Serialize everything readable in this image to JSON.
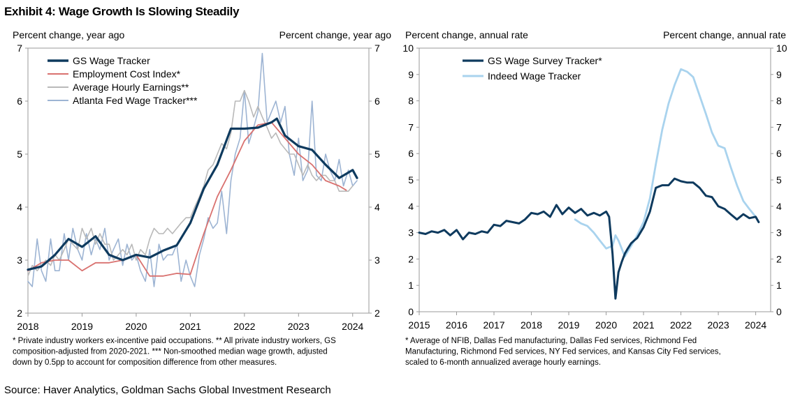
{
  "exhibit_title": "Exhibit 4: Wage Growth Is Slowing Steadily",
  "source": "Source: Haver Analytics, Goldman Sachs Global Investment Research",
  "chart_data": [
    {
      "type": "line",
      "left_axis_label": "Percent change, year ago",
      "right_axis_label": "Percent change, year ago",
      "xlim": [
        2018,
        2024.3
      ],
      "ylim": [
        2,
        7
      ],
      "x_ticks": [
        "2018",
        "2019",
        "2020",
        "2021",
        "2022",
        "2023",
        "2024"
      ],
      "y_ticks": [
        "2",
        "3",
        "4",
        "5",
        "6",
        "7"
      ],
      "legend_position": "top-left",
      "footnote_lines": [
        "* Private industry workers ex-incentive paid occupations. ** All private industry workers, GS",
        "composition-adjusted from 2020-2021. *** Non-smoothed median wage growth, adjusted",
        "down by 0.5pp to account for composition difference from other measures."
      ],
      "series": [
        {
          "name": "GS Wage Tracker",
          "color": "#0e3a5e",
          "x": [
            2018.0,
            2018.25,
            2018.5,
            2018.75,
            2019.0,
            2019.25,
            2019.5,
            2019.75,
            2020.0,
            2020.25,
            2020.5,
            2020.75,
            2021.0,
            2021.25,
            2021.5,
            2021.75,
            2022.0,
            2022.25,
            2022.5,
            2022.6,
            2022.75,
            2023.0,
            2023.25,
            2023.5,
            2023.75,
            2024.0,
            2024.08
          ],
          "y": [
            2.82,
            2.88,
            3.1,
            3.4,
            3.25,
            3.45,
            3.1,
            3.0,
            3.1,
            3.05,
            3.18,
            3.28,
            3.7,
            4.35,
            4.8,
            5.48,
            5.48,
            5.5,
            5.6,
            5.67,
            5.35,
            5.15,
            5.08,
            4.8,
            4.55,
            4.7,
            4.55
          ]
        },
        {
          "name": "Employment Cost Index*",
          "color": "#d9716f",
          "x": [
            2018.0,
            2018.25,
            2018.5,
            2018.75,
            2019.0,
            2019.25,
            2019.5,
            2019.75,
            2020.0,
            2020.25,
            2020.5,
            2020.75,
            2021.0,
            2021.25,
            2021.5,
            2021.75,
            2022.0,
            2022.25,
            2022.5,
            2022.75,
            2023.0,
            2023.25,
            2023.5,
            2023.75,
            2023.88
          ],
          "y": [
            2.8,
            2.95,
            3.0,
            3.0,
            2.8,
            2.95,
            2.95,
            3.0,
            3.1,
            2.7,
            2.7,
            2.75,
            2.73,
            3.5,
            4.2,
            4.7,
            5.25,
            5.55,
            5.6,
            5.3,
            5.0,
            4.8,
            4.5,
            4.4,
            4.32
          ]
        },
        {
          "name": "Average Hourly Earnings**",
          "color": "#b9b9b9",
          "x": [
            2018.0,
            2018.08,
            2018.17,
            2018.25,
            2018.33,
            2018.42,
            2018.5,
            2018.58,
            2018.67,
            2018.75,
            2018.83,
            2018.92,
            2019.0,
            2019.08,
            2019.17,
            2019.25,
            2019.33,
            2019.42,
            2019.5,
            2019.58,
            2019.67,
            2019.75,
            2019.83,
            2019.92,
            2020.0,
            2020.08,
            2020.17,
            2020.25,
            2020.33,
            2020.42,
            2020.5,
            2020.58,
            2020.67,
            2020.75,
            2020.83,
            2020.92,
            2021.0,
            2021.08,
            2021.17,
            2021.25,
            2021.33,
            2021.42,
            2021.5,
            2021.58,
            2021.67,
            2021.75,
            2021.83,
            2021.92,
            2022.0,
            2022.08,
            2022.17,
            2022.25,
            2022.33,
            2022.42,
            2022.5,
            2022.58,
            2022.67,
            2022.75,
            2022.83,
            2022.92,
            2023.0,
            2023.08,
            2023.17,
            2023.25,
            2023.33,
            2023.42,
            2023.5,
            2023.58,
            2023.67,
            2023.75,
            2023.83,
            2023.92,
            2024.0
          ],
          "y": [
            2.7,
            2.9,
            2.8,
            2.9,
            3.0,
            2.9,
            3.1,
            3.0,
            3.2,
            3.4,
            3.3,
            3.2,
            3.6,
            3.4,
            3.6,
            3.3,
            3.5,
            3.3,
            3.3,
            3.0,
            3.1,
            3.2,
            3.1,
            3.3,
            3.0,
            3.2,
            3.1,
            3.4,
            3.6,
            3.5,
            3.5,
            3.6,
            3.5,
            3.6,
            3.7,
            3.8,
            3.8,
            4.0,
            4.2,
            4.4,
            4.7,
            4.8,
            5.0,
            5.2,
            5.1,
            5.4,
            6.0,
            6.0,
            6.2,
            6.0,
            5.7,
            5.9,
            5.7,
            5.5,
            5.3,
            5.4,
            5.2,
            5.1,
            5.0,
            5.0,
            4.8,
            4.6,
            4.8,
            4.6,
            4.5,
            4.6,
            4.6,
            4.5,
            4.5,
            4.3,
            4.3,
            4.3,
            4.4
          ]
        },
        {
          "name": "Atlanta Fed Wage Tracker***",
          "color": "#9db4d3",
          "x": [
            2018.0,
            2018.08,
            2018.17,
            2018.25,
            2018.33,
            2018.42,
            2018.5,
            2018.58,
            2018.67,
            2018.75,
            2018.83,
            2018.92,
            2019.0,
            2019.08,
            2019.17,
            2019.25,
            2019.33,
            2019.42,
            2019.5,
            2019.58,
            2019.67,
            2019.75,
            2019.83,
            2019.92,
            2020.0,
            2020.08,
            2020.17,
            2020.25,
            2020.33,
            2020.42,
            2020.5,
            2020.58,
            2020.67,
            2020.75,
            2020.83,
            2020.92,
            2021.0,
            2021.08,
            2021.17,
            2021.25,
            2021.33,
            2021.42,
            2021.5,
            2021.58,
            2021.67,
            2021.75,
            2021.83,
            2021.92,
            2022.0,
            2022.08,
            2022.17,
            2022.25,
            2022.33,
            2022.42,
            2022.5,
            2022.58,
            2022.67,
            2022.75,
            2022.83,
            2022.92,
            2023.0,
            2023.08,
            2023.17,
            2023.25,
            2023.33,
            2023.42,
            2023.5,
            2023.58,
            2023.67,
            2023.75,
            2023.83,
            2023.92,
            2024.0,
            2024.08
          ],
          "y": [
            2.6,
            2.5,
            3.4,
            2.8,
            2.6,
            3.4,
            2.8,
            2.8,
            3.5,
            3.0,
            3.6,
            3.2,
            3.0,
            3.5,
            3.1,
            3.4,
            3.2,
            3.6,
            3.0,
            3.2,
            3.4,
            2.9,
            3.3,
            3.0,
            3.1,
            2.8,
            2.6,
            3.2,
            2.5,
            3.3,
            3.0,
            3.1,
            3.1,
            3.3,
            2.6,
            3.0,
            2.7,
            2.5,
            3.1,
            3.4,
            3.8,
            3.6,
            3.7,
            4.3,
            3.5,
            4.5,
            5.0,
            5.3,
            6.2,
            5.2,
            5.5,
            5.8,
            6.9,
            5.6,
            5.8,
            6.0,
            5.6,
            5.9,
            5.0,
            4.6,
            5.3,
            4.5,
            4.7,
            6.0,
            4.6,
            4.5,
            5.0,
            4.7,
            4.5,
            4.9,
            4.4,
            4.7,
            4.4,
            4.5
          ]
        }
      ]
    },
    {
      "type": "line",
      "left_axis_label": "Percent change, annual rate",
      "right_axis_label": "Percent change, annual rate",
      "xlim": [
        2015,
        2024.4
      ],
      "ylim": [
        0,
        10
      ],
      "x_ticks": [
        "2015",
        "2016",
        "2017",
        "2018",
        "2019",
        "2020",
        "2021",
        "2022",
        "2023",
        "2024"
      ],
      "y_ticks": [
        "0",
        "1",
        "2",
        "3",
        "4",
        "5",
        "6",
        "7",
        "8",
        "9",
        "10"
      ],
      "legend_position": "top-left",
      "footnote_lines": [
        "* Average of NFIB, Dallas Fed manufacturing, Dallas Fed services, Richmond Fed",
        "Manufacturing, Richmond Fed services, NY Fed services, and Kansas City Fed services,",
        "scaled to 6-month annualized average hourly earnings."
      ],
      "series": [
        {
          "name": "GS Wage Survey Tracker*",
          "color": "#0e3a5e",
          "x": [
            2015.0,
            2015.17,
            2015.33,
            2015.5,
            2015.67,
            2015.83,
            2016.0,
            2016.17,
            2016.33,
            2016.5,
            2016.67,
            2016.83,
            2017.0,
            2017.17,
            2017.33,
            2017.5,
            2017.67,
            2017.83,
            2018.0,
            2018.17,
            2018.33,
            2018.5,
            2018.67,
            2018.83,
            2019.0,
            2019.17,
            2019.33,
            2019.5,
            2019.67,
            2019.83,
            2020.0,
            2020.08,
            2020.17,
            2020.25,
            2020.33,
            2020.42,
            2020.5,
            2020.58,
            2020.67,
            2020.75,
            2020.83,
            2021.0,
            2021.17,
            2021.33,
            2021.5,
            2021.67,
            2021.83,
            2022.0,
            2022.17,
            2022.33,
            2022.5,
            2022.67,
            2022.83,
            2023.0,
            2023.17,
            2023.33,
            2023.5,
            2023.67,
            2023.83,
            2024.0,
            2024.08
          ],
          "y": [
            3.0,
            2.95,
            3.05,
            3.0,
            3.1,
            2.9,
            3.1,
            2.75,
            3.0,
            2.95,
            3.05,
            3.0,
            3.3,
            3.25,
            3.45,
            3.4,
            3.35,
            3.5,
            3.75,
            3.7,
            3.8,
            3.6,
            4.05,
            3.7,
            3.95,
            3.75,
            3.9,
            3.65,
            3.75,
            3.65,
            3.8,
            3.6,
            2.2,
            0.5,
            1.5,
            1.9,
            2.2,
            2.4,
            2.6,
            2.7,
            2.8,
            3.2,
            3.8,
            4.7,
            4.8,
            4.8,
            5.05,
            4.95,
            4.9,
            4.9,
            4.7,
            4.4,
            4.35,
            4.0,
            3.9,
            3.7,
            3.5,
            3.7,
            3.55,
            3.6,
            3.4
          ]
        },
        {
          "name": "Indeed Wage Tracker",
          "color": "#a9d3ee",
          "x": [
            2019.17,
            2019.33,
            2019.5,
            2019.67,
            2019.83,
            2020.0,
            2020.17,
            2020.25,
            2020.33,
            2020.5,
            2020.67,
            2020.83,
            2021.0,
            2021.17,
            2021.33,
            2021.5,
            2021.67,
            2021.83,
            2022.0,
            2022.17,
            2022.33,
            2022.5,
            2022.67,
            2022.83,
            2023.0,
            2023.17,
            2023.33,
            2023.5,
            2023.67,
            2023.83,
            2024.0,
            2024.08
          ],
          "y": [
            3.5,
            3.35,
            3.25,
            3.0,
            2.7,
            2.4,
            2.5,
            2.9,
            2.7,
            2.1,
            2.5,
            2.9,
            3.4,
            4.3,
            5.6,
            6.9,
            7.9,
            8.6,
            9.2,
            9.1,
            8.9,
            8.2,
            7.5,
            6.8,
            6.3,
            6.2,
            5.5,
            4.8,
            4.2,
            3.9,
            3.6,
            3.4
          ]
        }
      ]
    }
  ]
}
